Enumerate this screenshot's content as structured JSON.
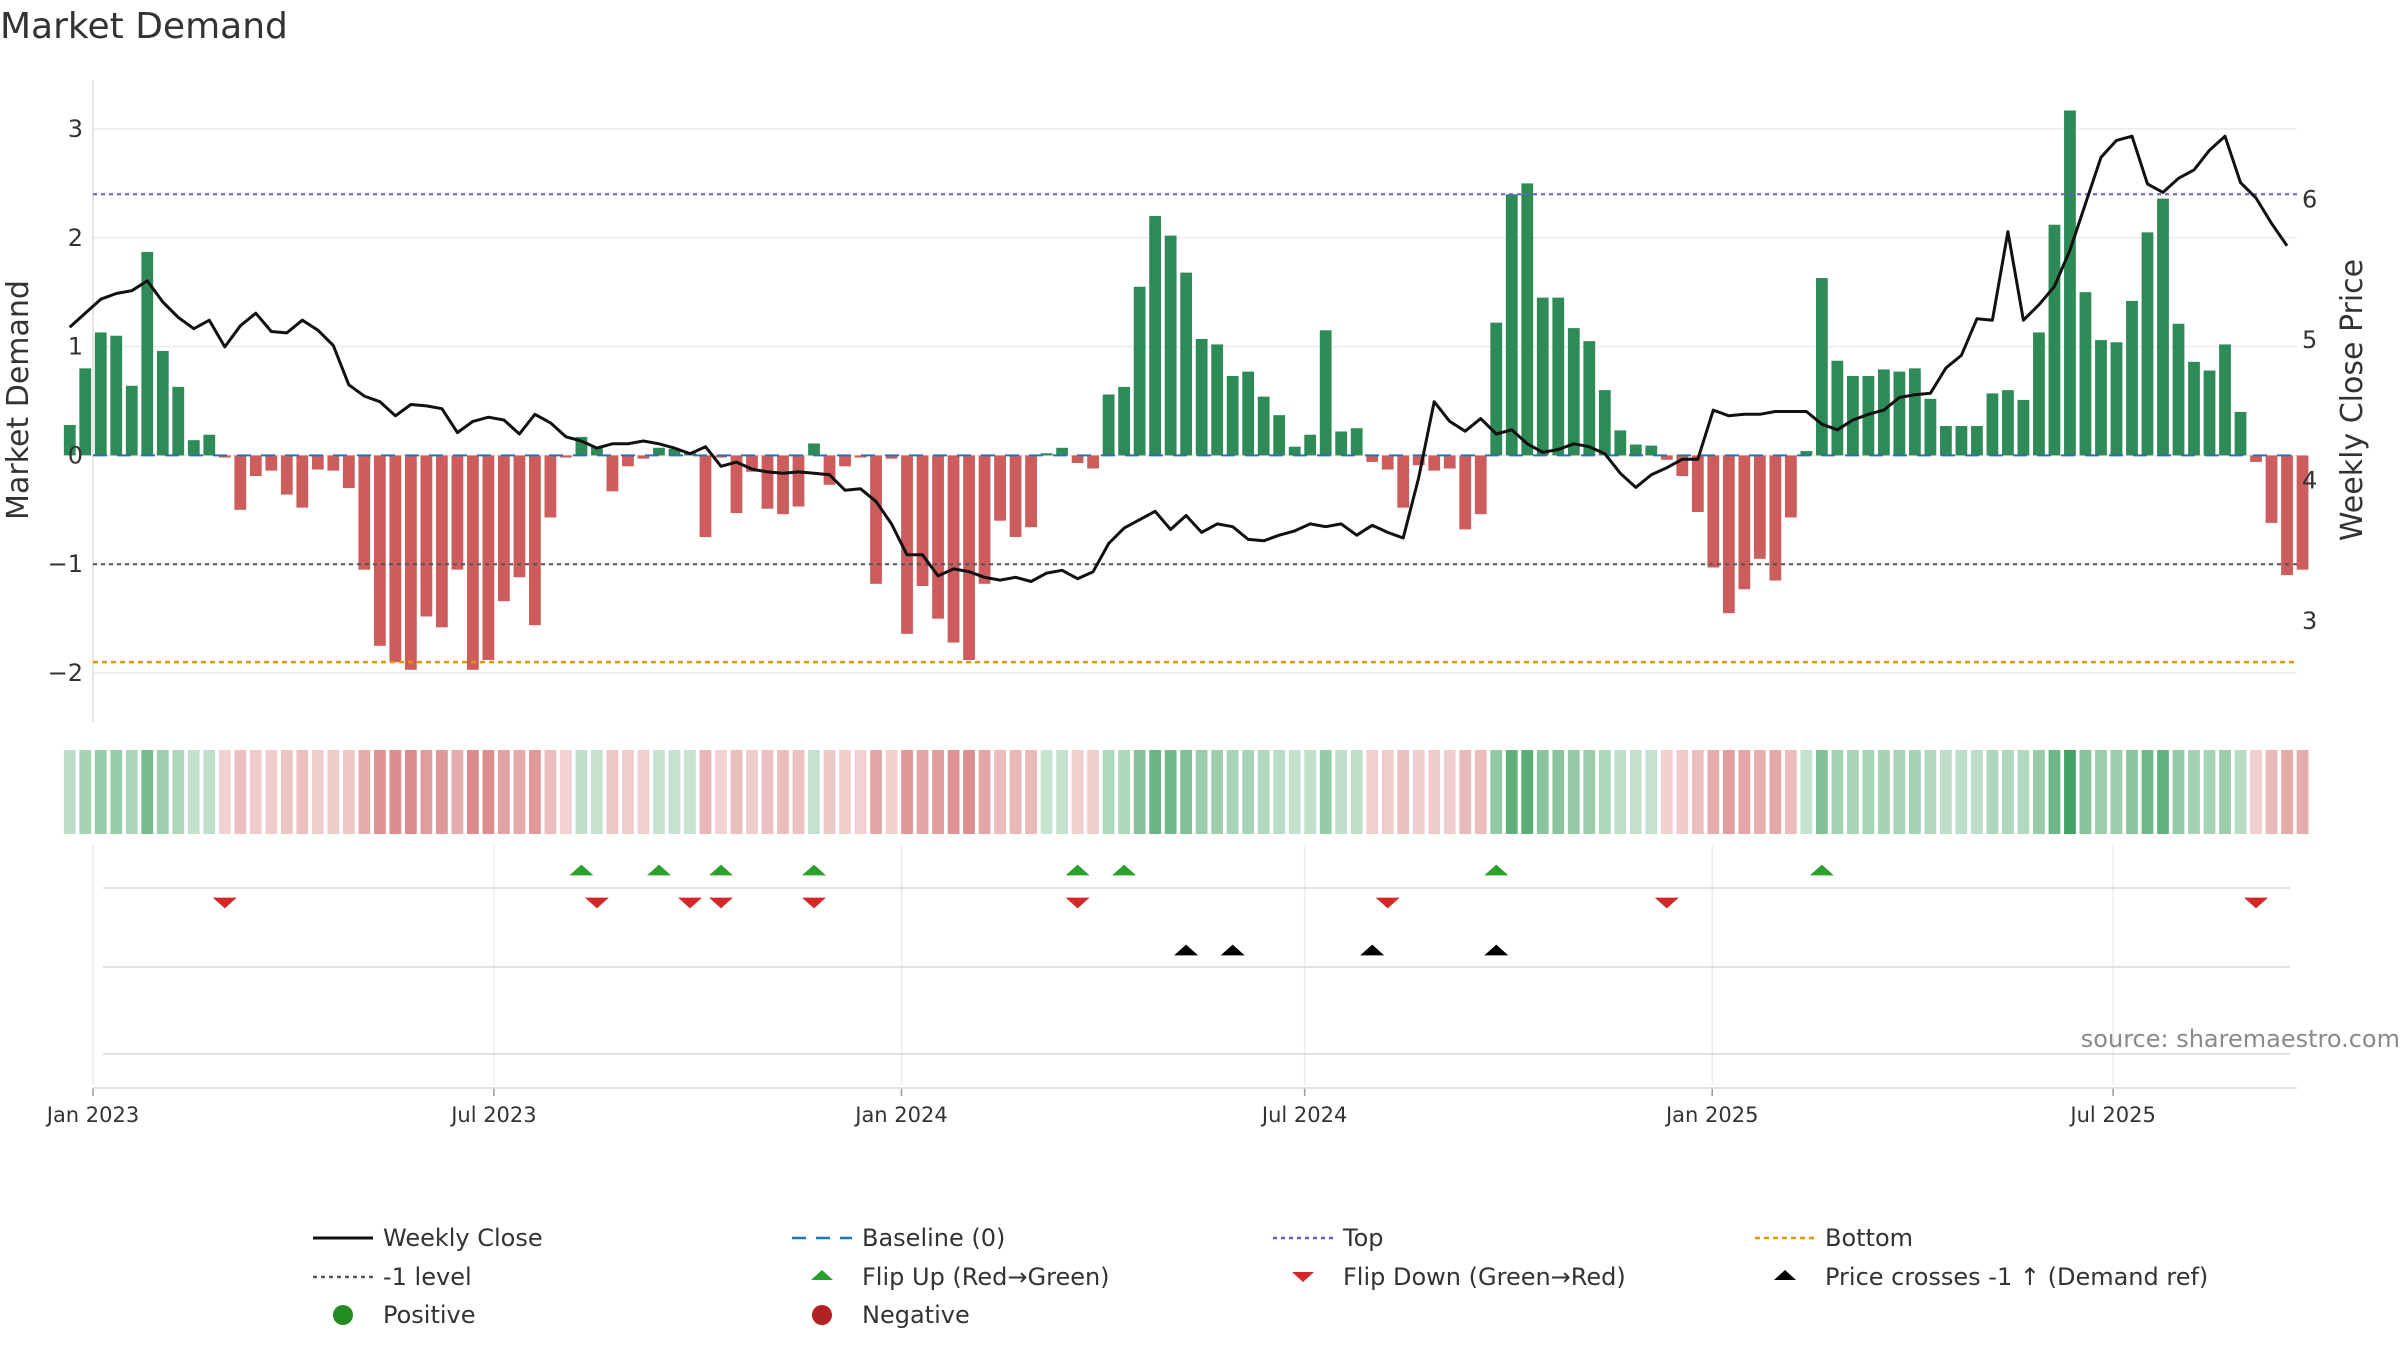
{
  "chart_data": {
    "type": "bar",
    "title": "Market Demand",
    "ylabel": "Market Demand",
    "y2label": "Weekly Close Price",
    "ylim": [
      -2.45,
      3.45
    ],
    "y2lim": [
      2.28,
      6.85
    ],
    "yticks": [
      "3",
      "2",
      "1",
      "0",
      "−1",
      "−2"
    ],
    "y2ticks": [
      "6",
      "5",
      "4",
      "3"
    ],
    "x_start": "2023-01-01",
    "x_end": "2025-09-22",
    "x_ticks": [
      {
        "date": "2023-01-01",
        "label": "Jan 2023"
      },
      {
        "date": "2023-07-01",
        "label": "Jul 2023"
      },
      {
        "date": "2024-01-01",
        "label": "Jan 2024"
      },
      {
        "date": "2024-07-01",
        "label": "Jul 2024"
      },
      {
        "date": "2025-01-01",
        "label": "Jan 2025"
      },
      {
        "date": "2025-07-01",
        "label": "Jul 2025"
      }
    ],
    "week_start": "2022-12-18",
    "demand": [
      0.28,
      0.8,
      1.13,
      1.1,
      0.64,
      1.87,
      0.96,
      0.63,
      0.14,
      0.19,
      -0.02,
      -0.5,
      -0.19,
      -0.14,
      -0.36,
      -0.48,
      -0.13,
      -0.14,
      -0.3,
      -1.05,
      -1.75,
      -1.9,
      -1.97,
      -1.48,
      -1.58,
      -1.05,
      -1.97,
      -1.88,
      -1.34,
      -1.12,
      -1.56,
      -0.57,
      -0.02,
      0.17,
      0.08,
      -0.33,
      -0.1,
      -0.03,
      0.07,
      0.06,
      0.03,
      -0.75,
      -0.02,
      -0.53,
      -0.15,
      -0.49,
      -0.54,
      -0.47,
      0.11,
      -0.27,
      -0.1,
      -0.02,
      -1.18,
      -0.03,
      -1.64,
      -1.2,
      -1.5,
      -1.72,
      -1.88,
      -1.18,
      -0.6,
      -0.75,
      -0.66,
      0.02,
      0.07,
      -0.07,
      -0.12,
      0.56,
      0.63,
      1.55,
      2.2,
      2.02,
      1.68,
      1.07,
      1.02,
      0.73,
      0.77,
      0.54,
      0.37,
      0.08,
      0.19,
      1.15,
      0.22,
      0.25,
      -0.06,
      -0.13,
      -0.48,
      -0.09,
      -0.14,
      -0.12,
      -0.68,
      -0.54,
      1.22,
      2.4,
      2.5,
      1.45,
      1.45,
      1.17,
      1.05,
      0.6,
      0.23,
      0.1,
      0.09,
      -0.04,
      -0.19,
      -0.52,
      -1.03,
      -1.45,
      -1.23,
      -0.95,
      -1.15,
      -0.57,
      0.04,
      1.63,
      0.87,
      0.73,
      0.73,
      0.79,
      0.77,
      0.8,
      0.52,
      0.27,
      0.27,
      0.27,
      0.57,
      0.6,
      0.51,
      1.13,
      2.12,
      3.17,
      1.5,
      1.06,
      1.04,
      1.42,
      2.05,
      2.36,
      1.21,
      0.86,
      0.78,
      1.02,
      0.4,
      -0.06,
      -0.62,
      -1.1,
      -1.05
    ],
    "close": [
      5.09,
      5.19,
      5.29,
      5.33,
      5.35,
      5.42,
      5.27,
      5.16,
      5.08,
      5.14,
      4.95,
      5.1,
      5.19,
      5.06,
      5.05,
      5.14,
      5.07,
      4.96,
      4.68,
      4.6,
      4.56,
      4.46,
      4.54,
      4.53,
      4.51,
      4.34,
      4.42,
      4.45,
      4.43,
      4.33,
      4.47,
      4.41,
      4.31,
      4.28,
      4.23,
      4.26,
      4.26,
      4.28,
      4.26,
      4.23,
      4.19,
      4.24,
      4.1,
      4.13,
      4.08,
      4.06,
      4.05,
      4.06,
      4.05,
      4.04,
      3.93,
      3.94,
      3.85,
      3.69,
      3.47,
      3.47,
      3.32,
      3.37,
      3.35,
      3.31,
      3.29,
      3.31,
      3.28,
      3.34,
      3.36,
      3.3,
      3.35,
      3.55,
      3.66,
      3.72,
      3.78,
      3.65,
      3.75,
      3.63,
      3.69,
      3.67,
      3.58,
      3.57,
      3.61,
      3.64,
      3.69,
      3.67,
      3.69,
      3.61,
      3.68,
      3.63,
      3.59,
      4.02,
      4.56,
      4.42,
      4.35,
      4.44,
      4.33,
      4.36,
      4.26,
      4.2,
      4.22,
      4.26,
      4.24,
      4.19,
      4.05,
      3.95,
      4.04,
      4.09,
      4.15,
      4.15,
      4.5,
      4.46,
      4.47,
      4.47,
      4.49,
      4.49,
      4.49,
      4.4,
      4.36,
      4.43,
      4.47,
      4.5,
      4.59,
      4.61,
      4.62,
      4.8,
      4.89,
      5.15,
      5.14,
      5.77,
      5.14,
      5.25,
      5.38,
      5.64,
      5.97,
      6.3,
      6.42,
      6.45,
      6.11,
      6.05,
      6.15,
      6.21,
      6.35,
      6.45,
      6.12,
      6.01,
      5.83,
      5.67
    ],
    "lines": {
      "baseline": 0,
      "top": 2.4,
      "minus1": -1,
      "bottom": -1.9
    },
    "flip_up_weeks": [
      33,
      38,
      42,
      48,
      65,
      68,
      92,
      113
    ],
    "flip_down_weeks": [
      10,
      34,
      40,
      42,
      48,
      65,
      85,
      103,
      141
    ],
    "price_cross_weeks": [
      72,
      75,
      84,
      92
    ],
    "source": "source: sharemaestro.com",
    "legend": [
      {
        "label": "Weekly Close"
      },
      {
        "label": "Baseline (0)"
      },
      {
        "label": "Top"
      },
      {
        "label": "Bottom"
      },
      {
        "label": "-1 level"
      },
      {
        "label": "Flip Up (Red→Green)"
      },
      {
        "label": "Flip Down (Green→Red)"
      },
      {
        "label": "Price crosses -1 ↑ (Demand ref)"
      },
      {
        "label": "Positive"
      },
      {
        "label": "Negative"
      }
    ],
    "colors": {
      "positive": "#2e8b57",
      "negative": "#cd5c5c",
      "close": "#111111",
      "baseline": "#1f77b4",
      "top": "#6a5acd",
      "bottom": "#e69500",
      "minus1": "#555555",
      "flip_up": "#2ca02c",
      "flip_down": "#d62728",
      "cross": "#000000",
      "positive_dot": "#228b22",
      "negative_dot": "#b22222"
    }
  }
}
